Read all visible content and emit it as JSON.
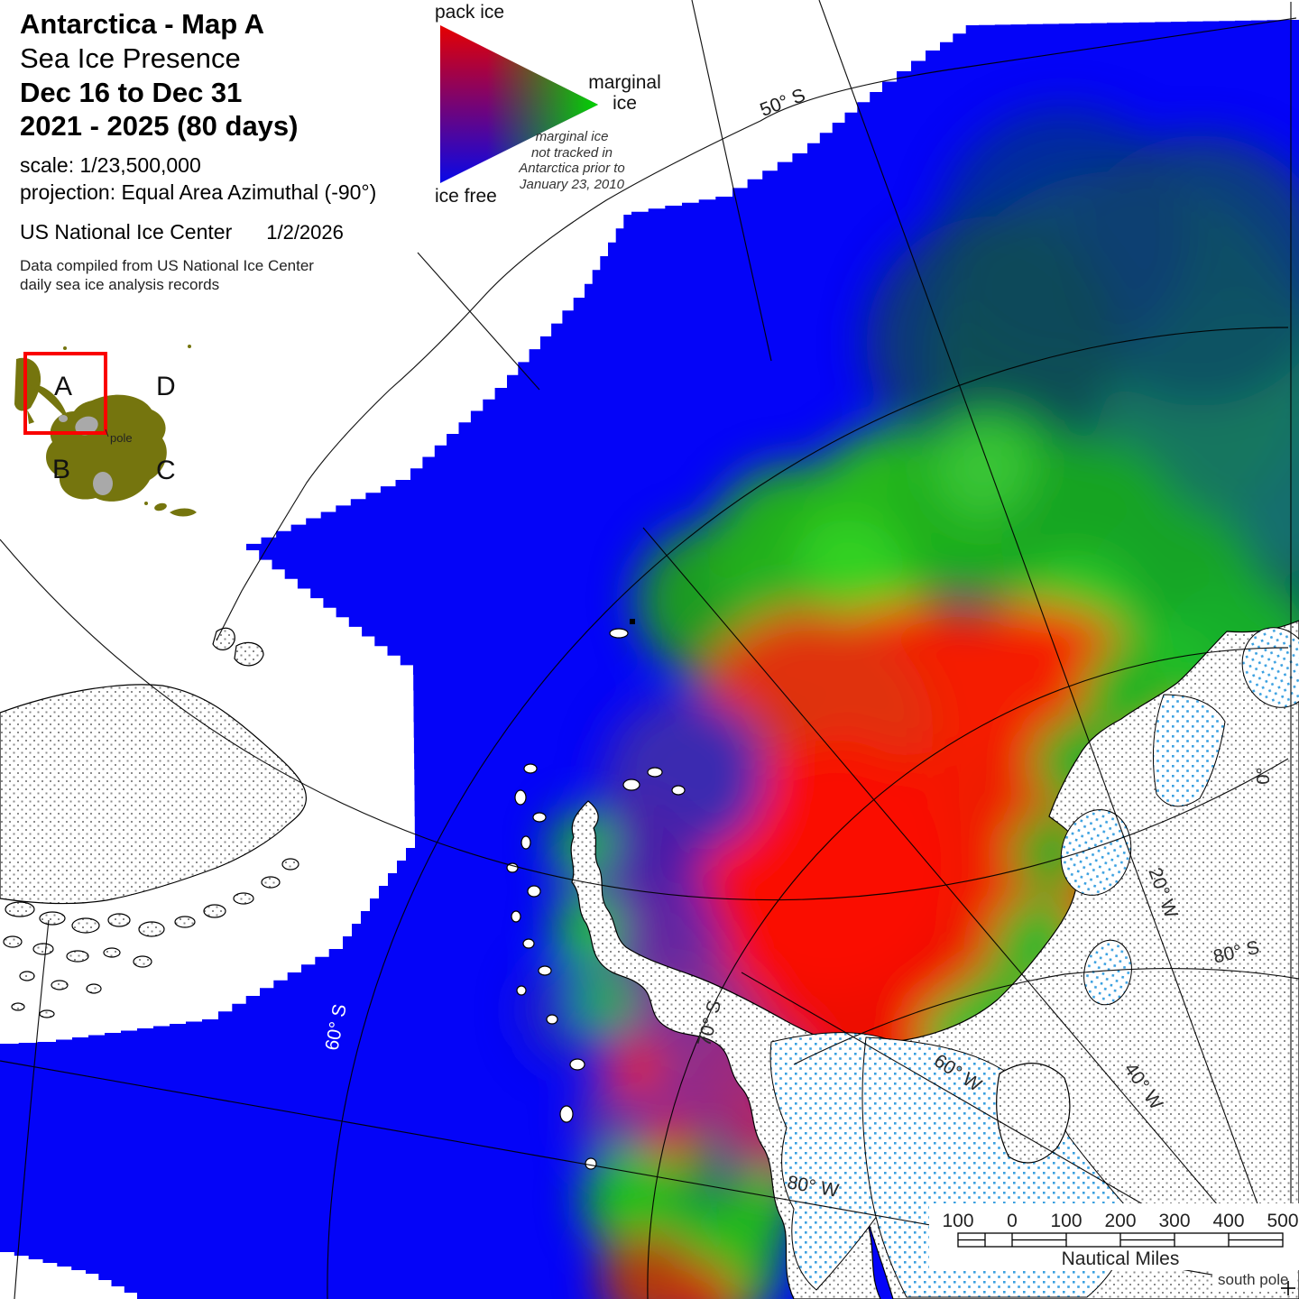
{
  "title_block": {
    "line1": "Antarctica  - Map A",
    "line2": "Sea Ice Presence",
    "line3": "Dec 16 to Dec 31",
    "line4": "2021 - 2025   (80 days)",
    "scale": "scale: 1/23,500,000",
    "projection": "projection: Equal Area Azimuthal (-90°)",
    "agency": "US National Ice Center",
    "date": "1/2/2026",
    "source_line1": "Data compiled from US National Ice Center",
    "source_line2": "daily sea ice analysis records"
  },
  "legend": {
    "pack_ice": "pack ice",
    "marginal_line1": "marginal",
    "marginal_line2": "ice",
    "ice_free": "ice free",
    "note_line1": "marginal ice",
    "note_line2": "not tracked in",
    "note_line3": "Antarctica prior to",
    "note_line4": "January 23, 2010",
    "colors": {
      "pack_ice": "#e60000",
      "marginal_ice": "#00d400",
      "ice_free": "#0404f8"
    }
  },
  "inset": {
    "quadrant_a": "A",
    "quadrant_b": "B",
    "quadrant_c": "C",
    "quadrant_d": "D",
    "pole": "pole",
    "colors": {
      "land": "#75750e",
      "ice_shelf": "#a9a9a9",
      "highlight_box": "#fa0000"
    }
  },
  "graticule": {
    "lat50": "50° S",
    "lat60": "60° S",
    "lat70": "70° S",
    "lat80": "80° S",
    "lon0": "0°",
    "lon20": "20° W",
    "lon40": "40° W",
    "lon60": "60° W",
    "lon80": "80° W"
  },
  "scalebar": {
    "ticks": [
      "100",
      "0",
      "100",
      "200",
      "300",
      "400",
      "500"
    ],
    "unit": "Nautical Miles"
  },
  "pole_mark": {
    "label": "south pole"
  },
  "map_colors": {
    "ocean_ice_free": "#0404f8",
    "pack_ice_core": "#f51200",
    "marginal_band": "#22ae1e",
    "land_stipple_dot": "#8a8a8a",
    "ice_shelf_stipple_dot": "#3aa0e0"
  }
}
